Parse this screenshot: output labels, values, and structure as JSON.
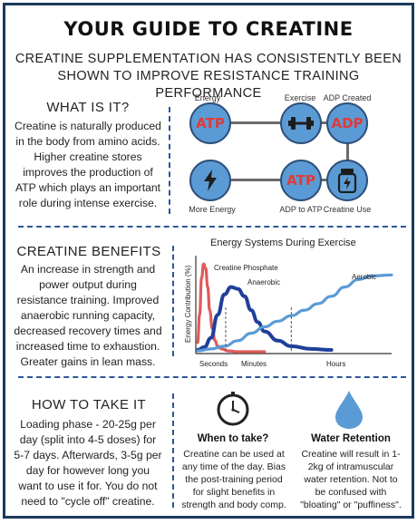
{
  "title": "YOUR GUIDE TO CREATINE",
  "subtitle_line1": "CREATINE SUPPLEMENTATION HAS CONSISTENTLY BEEN",
  "subtitle_line2": "SHOWN TO IMPROVE RESISTANCE TRAINING PERFORMANCE",
  "what": {
    "heading": "WHAT IS IT?",
    "lines": [
      "Creatine is naturally produced",
      "in the body from amino acids.",
      "Higher creatine stores",
      "improves the production of",
      "ATP which plays an important",
      "role during intense exercise."
    ]
  },
  "diagram": {
    "nodes": {
      "energy": {
        "label": "Energy",
        "text": "ATP",
        "icon": "none"
      },
      "exercise": {
        "label": "Exercise",
        "text": "",
        "icon": "dumbbell-icon"
      },
      "adp_created": {
        "label": "ADP Created",
        "text": "ADP",
        "icon": "none"
      },
      "more_energy": {
        "label": "More Energy",
        "text": "",
        "icon": "lightning-icon"
      },
      "adp_to_atp": {
        "label": "ADP to ATP",
        "text": "ATP",
        "icon": "none"
      },
      "creatine_use": {
        "label": "Creatine Use",
        "text": "",
        "icon": "supplement-jar-icon"
      }
    }
  },
  "benefits": {
    "heading": "CREATINE BENEFITS",
    "lines": [
      "An increase in strength and",
      "power output during",
      "resistance training. Improved",
      "anaerobic running capacity,",
      "decreased recovery times and",
      "increased time to exhaustion.",
      "Greater gains in lean mass."
    ]
  },
  "chart_data": {
    "type": "line",
    "title": "Energy Systems During Exercise",
    "ylabel": "Energy Contribution (%)",
    "xlabel": "",
    "x_tick_labels": [
      "Seconds",
      "Minutes",
      "Hours"
    ],
    "series": [
      {
        "name": "Creatine Phosphate",
        "color": "#e05a5a",
        "x": [
          0,
          0.3,
          0.6,
          0.9,
          1.2,
          1.5,
          1.8,
          2.2,
          2.6,
          3.0,
          3.6,
          4.5,
          6,
          8,
          10
        ],
        "y": [
          10,
          40,
          80,
          95,
          90,
          70,
          45,
          25,
          12,
          6,
          3,
          1,
          0,
          0,
          0
        ]
      },
      {
        "name": "Anaerobic",
        "color": "#1f3f99",
        "x": [
          0,
          1,
          2,
          3,
          4,
          5,
          6,
          7,
          8,
          9,
          10,
          12,
          14,
          17,
          20
        ],
        "y": [
          2,
          5,
          15,
          40,
          62,
          70,
          68,
          60,
          45,
          32,
          22,
          12,
          6,
          3,
          2
        ]
      },
      {
        "name": "Aerobic",
        "color": "#5b9bd5",
        "x": [
          0,
          2,
          4,
          6,
          8,
          10,
          12,
          14,
          16,
          18,
          20,
          22,
          24,
          26,
          29
        ],
        "y": [
          1,
          3,
          6,
          12,
          20,
          27,
          33,
          39,
          45,
          52,
          60,
          70,
          78,
          82,
          83
        ]
      }
    ]
  },
  "howto": {
    "heading": "HOW TO TAKE IT",
    "lines": [
      "Loading phase - 20-25g per",
      "day (split into 4-5 doses) for",
      "5-7 days. Afterwards, 3-5g per",
      "day for however long you",
      "want to use it for. You do not",
      "need to \"cycle off\" creatine."
    ]
  },
  "when": {
    "heading": "When to take?",
    "lines": [
      "Creatine can be used at",
      "any time of the day. Bias",
      "the post-training period",
      "for slight benefits in",
      "strength and body comp."
    ]
  },
  "water": {
    "heading": "Water Retention",
    "lines": [
      "Creatine will result in 1-",
      "2kg of intramuscular",
      "water retention. Not to",
      "be confused with",
      "\"bloating\" or \"puffiness\"."
    ]
  },
  "colors": {
    "accent": "#5b9bd5",
    "dark_blue": "#1f3f99",
    "red": "#e05a5a",
    "dash": "#2b5797"
  }
}
